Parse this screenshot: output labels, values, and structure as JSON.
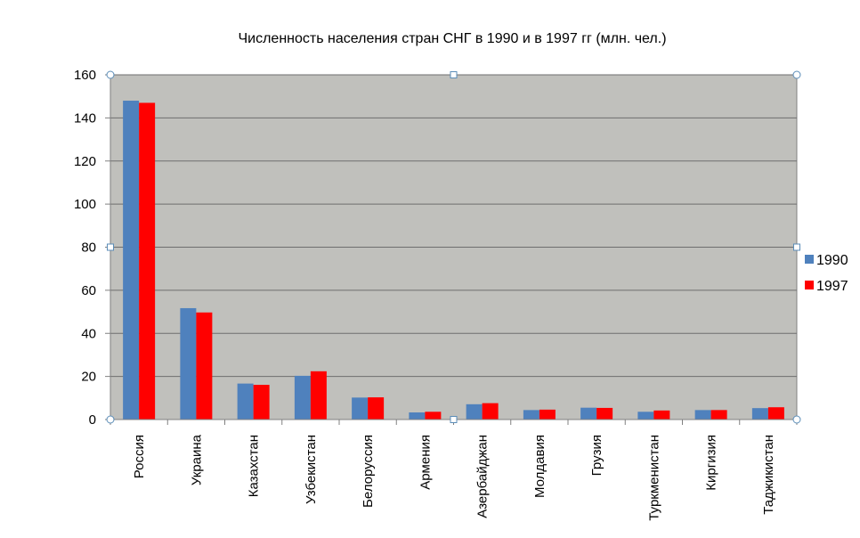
{
  "chart_data": {
    "type": "bar",
    "title": "Численность населения стран СНГ в 1990 и в 1997 гг (млн. чел.)",
    "xlabel": "",
    "ylabel": "",
    "ylim": [
      0,
      160
    ],
    "yticks": [
      0,
      20,
      40,
      60,
      80,
      100,
      120,
      140,
      160
    ],
    "grid": true,
    "legend_position": "right",
    "categories": [
      "Россия",
      "Украина",
      "Казахстан",
      "Узбекистан",
      "Белоруссия",
      "Армения",
      "Азербайджан",
      "Молдавия",
      "Грузия",
      "Туркменистан",
      "Киргизия",
      "Таджикистан"
    ],
    "series": [
      {
        "name": "1990",
        "color": "#4f81bd",
        "values": [
          148,
          51.7,
          16.7,
          20.3,
          10.2,
          3.3,
          7.1,
          4.4,
          5.5,
          3.6,
          4.4,
          5.3
        ]
      },
      {
        "name": "1997",
        "color": "#ff0000",
        "values": [
          147,
          49.7,
          16.1,
          22.4,
          10.3,
          3.6,
          7.6,
          4.6,
          5.4,
          4.2,
          4.4,
          5.7
        ]
      }
    ],
    "plot_background": "#c0c0bc"
  }
}
